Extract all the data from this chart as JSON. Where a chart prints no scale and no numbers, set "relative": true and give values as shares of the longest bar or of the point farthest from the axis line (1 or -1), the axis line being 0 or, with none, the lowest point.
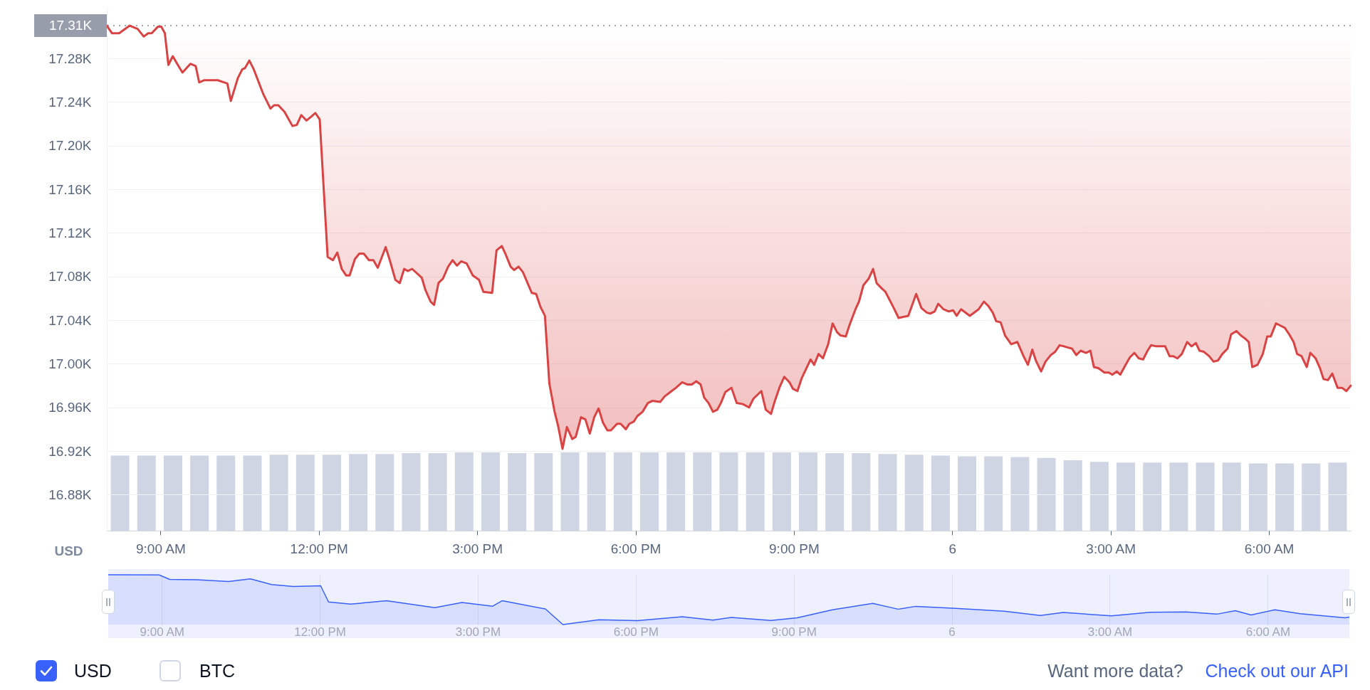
{
  "chart_data": [
    {
      "type": "line",
      "ylabel": "USD",
      "color": "#d94343",
      "grid": "y",
      "x": [
        "--12-05T07:59",
        "--12-05T08:05",
        "--12-05T08:13",
        "--12-05T08:25",
        "--12-05T08:34",
        "--12-05T08:41",
        "--12-05T08:46",
        "--12-05T08:50",
        "--12-05T08:57",
        "--12-05T09:01",
        "--12-05T09:05",
        "--12-05T09:09",
        "--12-05T09:14",
        "--12-05T09:19",
        "--12-05T09:25",
        "--12-05T09:34",
        "--12-05T09:40",
        "--12-05T09:44",
        "--12-05T09:50",
        "--12-05T10:05",
        "--12-05T10:16",
        "--12-05T10:20",
        "--12-05T10:28",
        "--12-05T10:33",
        "--12-05T10:36",
        "--12-05T10:41",
        "--12-05T10:46",
        "--12-05T10:57",
        "--12-05T11:05",
        "--12-05T11:09",
        "--12-05T11:14",
        "--12-05T11:21",
        "--12-05T11:30",
        "--12-05T11:35",
        "--12-05T11:40",
        "--12-05T11:46",
        "--12-05T11:52",
        "--12-05T11:56",
        "--12-05T12:01",
        "--12-05T12:10",
        "--12-05T12:16",
        "--12-05T12:21",
        "--12-05T12:26",
        "--12-05T12:31",
        "--12-05T12:35",
        "--12-05T12:41",
        "--12-05T12:46",
        "--12-05T12:51",
        "--12-05T12:57",
        "--12-05T13:02",
        "--12-05T13:07",
        "--12-05T13:16",
        "--12-05T13:21",
        "--12-05T13:27",
        "--12-05T13:32",
        "--12-05T13:37",
        "--12-05T13:41",
        "--12-05T13:46",
        "--12-05T13:57",
        "--12-05T14:01",
        "--12-05T14:07",
        "--12-05T14:11",
        "--12-05T14:16",
        "--12-05T14:21",
        "--12-05T14:27",
        "--12-05T14:32",
        "--12-05T14:37",
        "--12-05T14:42",
        "--12-05T14:48",
        "--12-05T14:55",
        "--12-05T15:02",
        "--12-05T15:07",
        "--12-05T15:17",
        "--12-05T15:22",
        "--12-05T15:28",
        "--12-05T15:32",
        "--12-05T15:38",
        "--12-05T15:42",
        "--12-05T15:47",
        "--12-05T15:52",
        "--12-05T16:02",
        "--12-05T16:07",
        "--12-05T16:12",
        "--12-05T16:17",
        "--12-05T16:22",
        "--12-05T16:28",
        "--12-05T16:32",
        "--12-05T16:37",
        "--12-05T16:42",
        "--12-05T16:48",
        "--12-05T16:52",
        "--12-05T16:58",
        "--12-05T17:03",
        "--12-05T17:08",
        "--12-05T17:13",
        "--12-05T17:18",
        "--12-05T17:23",
        "--12-05T17:28",
        "--12-05T17:32",
        "--12-05T17:39",
        "--12-05T17:43",
        "--12-05T17:49",
        "--12-05T17:53",
        "--12-05T17:58",
        "--12-05T18:02",
        "--12-05T18:08",
        "--12-05T18:14",
        "--12-05T18:19",
        "--12-05T18:28",
        "--12-05T18:33",
        "--12-05T18:41",
        "--12-05T18:46",
        "--12-05T18:53",
        "--12-05T18:59",
        "--12-05T19:04",
        "--12-05T19:09",
        "--12-05T19:14",
        "--12-05T19:18",
        "--12-05T19:23",
        "--12-05T19:28",
        "--12-05T19:33",
        "--12-05T19:37",
        "--12-05T19:42",
        "--12-05T19:49",
        "--12-05T19:55",
        "--12-05T20:02",
        "--12-05T20:09",
        "--12-05T20:14",
        "--12-05T20:23",
        "--12-05T20:28",
        "--12-05T20:34",
        "--12-05T20:38",
        "--12-05T20:44",
        "--12-05T20:49",
        "--12-05T20:55",
        "--12-05T20:59",
        "--12-05T21:04",
        "--12-05T21:09",
        "--12-05T21:19",
        "--12-05T21:23",
        "--12-05T21:28",
        "--12-05T21:33",
        "--12-05T21:39",
        "--12-05T21:44",
        "--12-05T21:49",
        "--12-05T21:53",
        "--12-05T21:59",
        "--12-05T22:03",
        "--12-05T22:10",
        "--12-05T22:14",
        "--12-05T22:19",
        "--12-05T22:25",
        "--12-05T22:30",
        "--12-05T22:34",
        "--12-05T22:40",
        "--12-05T22:44",
        "--12-05T22:53",
        "--12-05T22:59",
        "--12-05T23:10",
        "--12-05T23:19",
        "--12-05T23:25",
        "--12-05T23:31",
        "--12-05T23:35",
        "--12-05T23:40",
        "--12-05T23:44",
        "--12-05T23:50",
        "--12-05T23:56",
        "--12-06T00:01",
        "--12-06T00:05",
        "--12-06T00:10",
        "--12-06T00:20",
        "--12-06T00:30",
        "--12-06T00:36",
        "--12-06T00:41",
        "--12-06T00:46",
        "--12-06T00:50",
        "--12-06T00:55",
        "--12-06T01:00",
        "--12-06T01:07",
        "--12-06T01:14",
        "--12-06T01:21",
        "--12-06T01:26",
        "--12-06T01:31",
        "--12-06T01:35",
        "--12-06T01:41",
        "--12-06T01:46",
        "--12-06T01:52",
        "--12-06T01:57",
        "--12-06T02:02",
        "--12-06T02:07",
        "--12-06T02:11",
        "--12-06T02:16",
        "--12-06T02:21",
        "--12-06T02:26",
        "--12-06T02:32",
        "--12-06T02:37",
        "--12-06T02:41",
        "--12-06T02:46",
        "--12-06T02:53",
        "--12-06T02:58",
        "--12-06T03:02",
        "--12-06T03:07",
        "--12-06T03:11",
        "--12-06T03:17",
        "--12-06T03:22",
        "--12-06T03:27",
        "--12-06T03:32",
        "--12-06T03:37",
        "--12-06T03:42",
        "--12-06T03:46",
        "--12-06T03:52",
        "--12-06T04:02",
        "--12-06T04:07",
        "--12-06T04:11",
        "--12-06T04:16",
        "--12-06T04:21",
        "--12-06T04:27",
        "--12-06T04:32",
        "--12-06T04:37",
        "--12-06T04:41",
        "--12-06T04:46",
        "--12-06T04:52",
        "--12-06T04:57",
        "--12-06T05:02",
        "--12-06T05:07",
        "--12-06T05:13",
        "--12-06T05:17",
        "--12-06T05:23",
        "--12-06T05:28",
        "--12-06T05:33",
        "--12-06T05:37",
        "--12-06T05:41",
        "--12-06T05:47",
        "--12-06T05:53",
        "--12-06T05:58",
        "--12-06T06:02",
        "--12-06T06:08",
        "--12-06T06:13",
        "--12-06T06:18",
        "--12-06T06:23",
        "--12-06T06:28",
        "--12-06T06:32",
        "--12-06T06:37",
        "--12-06T06:43",
        "--12-06T06:47",
        "--12-06T06:53",
        "--12-06T06:58",
        "--12-06T07:02",
        "--12-06T07:07",
        "--12-06T07:12",
        "--12-06T07:18",
        "--12-06T07:23",
        "--12-06T07:28",
        "--12-06T07:33"
      ],
      "values": [
        17.31,
        17.303,
        17.303,
        17.31,
        17.307,
        17.3,
        17.303,
        17.303,
        17.309,
        17.309,
        17.303,
        17.274,
        17.282,
        17.275,
        17.267,
        17.275,
        17.273,
        17.258,
        17.26,
        17.26,
        17.257,
        17.241,
        17.262,
        17.27,
        17.271,
        17.278,
        17.27,
        17.247,
        17.234,
        17.237,
        17.237,
        17.231,
        17.218,
        17.219,
        17.228,
        17.223,
        17.227,
        17.23,
        17.224,
        17.098,
        17.095,
        17.102,
        17.087,
        17.081,
        17.081,
        17.096,
        17.101,
        17.101,
        17.095,
        17.095,
        17.088,
        17.107,
        17.094,
        17.077,
        17.074,
        17.087,
        17.085,
        17.087,
        17.079,
        17.068,
        17.057,
        17.054,
        17.074,
        17.078,
        17.089,
        17.095,
        17.09,
        17.094,
        17.092,
        17.081,
        17.077,
        17.066,
        17.065,
        17.104,
        17.108,
        17.101,
        17.089,
        17.086,
        17.089,
        17.084,
        17.065,
        17.064,
        17.052,
        17.044,
        16.982,
        16.956,
        16.943,
        16.922,
        16.942,
        16.931,
        16.933,
        16.951,
        16.949,
        16.936,
        16.951,
        16.959,
        16.946,
        16.939,
        16.939,
        16.945,
        16.945,
        16.94,
        16.945,
        16.947,
        16.952,
        16.956,
        16.964,
        16.966,
        16.965,
        16.97,
        16.975,
        16.978,
        16.983,
        16.981,
        16.981,
        16.984,
        16.981,
        16.969,
        16.964,
        16.956,
        16.958,
        16.964,
        16.974,
        16.978,
        16.964,
        16.963,
        16.96,
        16.968,
        16.975,
        16.958,
        16.954,
        16.965,
        16.979,
        16.988,
        16.983,
        16.977,
        16.975,
        16.987,
        17.004,
        16.999,
        17.009,
        17.005,
        17.018,
        17.037,
        17.029,
        17.026,
        17.025,
        17.035,
        17.05,
        17.057,
        17.072,
        17.078,
        17.087,
        17.074,
        17.069,
        17.066,
        17.052,
        17.042,
        17.044,
        17.064,
        17.051,
        17.047,
        17.046,
        17.048,
        17.055,
        17.05,
        17.048,
        17.049,
        17.044,
        17.05,
        17.044,
        17.05,
        17.057,
        17.053,
        17.047,
        17.039,
        17.038,
        17.026,
        17.018,
        17.02,
        17.007,
        16.999,
        17.013,
        17.003,
        16.993,
        17.002,
        17.008,
        17.011,
        17.017,
        17.016,
        17.015,
        17.014,
        17.008,
        17.012,
        17.01,
        17.012,
        16.997,
        16.996,
        16.992,
        16.992,
        16.99,
        16.993,
        16.99,
        16.999,
        17.006,
        17.01,
        17.005,
        17.004,
        17.012,
        17.017,
        17.016,
        17.016,
        17.007,
        17.007,
        17.005,
        17.009,
        17.02,
        17.016,
        17.019,
        17.012,
        17.011,
        17.007,
        17.002,
        17.003,
        17.009,
        17.014,
        17.027,
        17.03,
        17.026,
        17.023,
        17.02,
        16.997,
        16.999,
        17.009,
        17.025,
        17.025,
        17.037,
        17.035,
        17.033,
        17.027,
        17.02,
        17.009,
        17.007,
        16.997,
        17.01,
        17.005,
        16.996,
        16.986,
        16.985,
        16.991,
        16.978,
        16.978,
        16.975,
        16.98
      ],
      "xlim": [
        "--12-05T07:59",
        "--12-06T07:33"
      ],
      "ylim": [
        16.847,
        17.327
      ],
      "xticks": [
        {
          "value": "--12-05T09:00",
          "label": "9:00 AM"
        },
        {
          "value": "--12-05T12:00",
          "label": "12:00 PM"
        },
        {
          "value": "--12-05T15:00",
          "label": "3:00 PM"
        },
        {
          "value": "--12-05T18:00",
          "label": "6:00 PM"
        },
        {
          "value": "--12-05T21:00",
          "label": "9:00 PM"
        },
        {
          "value": "--12-06T00:00",
          "label": "6"
        },
        {
          "value": "--12-06T03:00",
          "label": "3:00 AM"
        },
        {
          "value": "--12-06T06:00",
          "label": "6:00 AM"
        }
      ],
      "yticks": [
        {
          "value": 16.88,
          "label": "16.88K"
        },
        {
          "value": 16.92,
          "label": "16.92K"
        },
        {
          "value": 16.96,
          "label": "16.96K"
        },
        {
          "value": 17.0,
          "label": "17.00K"
        },
        {
          "value": 17.04,
          "label": "17.04K"
        },
        {
          "value": 17.08,
          "label": "17.08K"
        },
        {
          "value": 17.12,
          "label": "17.12K"
        },
        {
          "value": 17.16,
          "label": "17.16K"
        },
        {
          "value": 17.2,
          "label": "17.20K"
        },
        {
          "value": 17.24,
          "label": "17.24K"
        },
        {
          "value": 17.28,
          "label": "17.28K"
        }
      ],
      "ref_lines": [
        {
          "axis": "y",
          "value": 17.31,
          "label": "17.31K",
          "line_style": "dotted",
          "color": "#808a9d"
        }
      ]
    },
    {
      "type": "bar",
      "relative": true,
      "color": "#cfd5e3",
      "categories": [
        null,
        null,
        null,
        null,
        null,
        null,
        null,
        null,
        null,
        null,
        null,
        null,
        null,
        null,
        null,
        null,
        null,
        null,
        null,
        null,
        null,
        null,
        null,
        null,
        null,
        null,
        null,
        null,
        null,
        null,
        null,
        null,
        null,
        null,
        null,
        null,
        null,
        null,
        null,
        null,
        null,
        null,
        null,
        null,
        null,
        null,
        null
      ],
      "values": [
        0.96,
        0.96,
        0.96,
        0.96,
        0.96,
        0.96,
        0.97,
        0.97,
        0.97,
        0.98,
        0.98,
        0.99,
        0.99,
        1,
        1,
        0.99,
        0.99,
        1,
        1,
        1,
        1,
        1,
        1,
        1,
        1,
        1,
        1,
        0.99,
        0.99,
        0.98,
        0.97,
        0.96,
        0.95,
        0.95,
        0.94,
        0.93,
        0.9,
        0.88,
        0.87,
        0.87,
        0.87,
        0.87,
        0.87,
        0.86,
        0.86,
        0.86,
        0.87
      ]
    },
    {
      "type": "area",
      "relative": true,
      "color": "#3861fb",
      "grid": "x",
      "xlim": [
        "--12-05T07:59",
        "--12-06T07:33"
      ],
      "xticks": [
        {
          "value": "--12-05T09:00",
          "label": "9:00 AM"
        },
        {
          "value": "--12-05T12:00",
          "label": "12:00 PM"
        },
        {
          "value": "--12-05T15:00",
          "label": "3:00 PM"
        },
        {
          "value": "--12-05T18:00",
          "label": "6:00 PM"
        },
        {
          "value": "--12-05T21:00",
          "label": "9:00 PM"
        },
        {
          "value": "--12-06T00:00",
          "label": "6"
        },
        {
          "value": "--12-06T03:00",
          "label": "3:00 AM"
        },
        {
          "value": "--12-06T06:00",
          "label": "6:00 AM"
        }
      ],
      "x": [
        "--12-05T07:59",
        "--12-05T08:57",
        "--12-05T09:09",
        "--12-05T09:40",
        "--12-05T10:16",
        "--12-05T10:41",
        "--12-05T11:05",
        "--12-05T11:30",
        "--12-05T12:01",
        "--12-05T12:10",
        "--12-05T12:35",
        "--12-05T13:16",
        "--12-05T14:11",
        "--12-05T14:42",
        "--12-05T15:17",
        "--12-05T15:28",
        "--12-05T16:17",
        "--12-05T16:37",
        "--12-05T17:18",
        "--12-05T18:02",
        "--12-05T18:53",
        "--12-05T19:28",
        "--12-05T19:49",
        "--12-05T20:34",
        "--12-05T21:04",
        "--12-05T21:44",
        "--12-05T22:30",
        "--12-05T22:59",
        "--12-05T23:19",
        "--12-06T00:01",
        "--12-06T01:00",
        "--12-06T01:41",
        "--12-06T02:07",
        "--12-06T03:02",
        "--12-06T03:46",
        "--12-06T04:27",
        "--12-06T05:02",
        "--12-06T05:23",
        "--12-06T05:41",
        "--12-06T06:08",
        "--12-06T06:37",
        "--12-06T07:28",
        "--12-06T07:33"
      ],
      "values": [
        1,
        0.997,
        0.907,
        0.9,
        0.863,
        0.918,
        0.804,
        0.763,
        0.778,
        0.454,
        0.41,
        0.477,
        0.34,
        0.443,
        0.369,
        0.479,
        0.314,
        0,
        0.095,
        0.077,
        0.157,
        0.088,
        0.144,
        0.082,
        0.137,
        0.296,
        0.425,
        0.309,
        0.366,
        0.327,
        0.268,
        0.183,
        0.242,
        0.175,
        0.245,
        0.253,
        0.209,
        0.278,
        0.193,
        0.296,
        0.219,
        0.137,
        0.149
      ]
    },
    {
      "type": "other",
      "annotations": [
        "USD",
        "BTC",
        "Want more data?",
        "Check out our API"
      ]
    }
  ]
}
